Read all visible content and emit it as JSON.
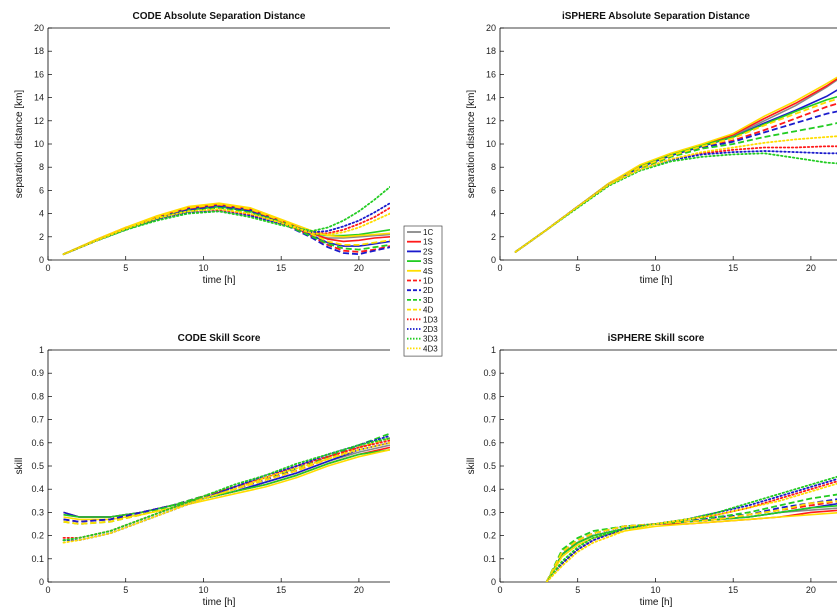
{
  "legend": {
    "entries": [
      {
        "name": "1C",
        "color": "#888888",
        "dash": "solid"
      },
      {
        "name": "1S",
        "color": "#ff1a1a",
        "dash": "solid"
      },
      {
        "name": "2S",
        "color": "#1a1acc",
        "dash": "solid"
      },
      {
        "name": "3S",
        "color": "#22cc22",
        "dash": "solid"
      },
      {
        "name": "4S",
        "color": "#ffdd00",
        "dash": "solid"
      },
      {
        "name": "1D",
        "color": "#ff1a1a",
        "dash": "dashed"
      },
      {
        "name": "2D",
        "color": "#1a1acc",
        "dash": "dashed"
      },
      {
        "name": "3D",
        "color": "#22cc22",
        "dash": "dashed"
      },
      {
        "name": "4D",
        "color": "#ffdd00",
        "dash": "dashed"
      },
      {
        "name": "1D3",
        "color": "#ff1a1a",
        "dash": "dotted"
      },
      {
        "name": "2D3",
        "color": "#1a1acc",
        "dash": "dotted"
      },
      {
        "name": "3D3",
        "color": "#22cc22",
        "dash": "dotted"
      },
      {
        "name": "4D3",
        "color": "#ffdd00",
        "dash": "dotted"
      }
    ]
  },
  "chart_data": [
    {
      "type": "line",
      "title": "CODE Absolute Separation Distance",
      "xlabel": "time [h]",
      "ylabel": "separation distance [km]",
      "xlim": [
        0,
        22
      ],
      "ylim": [
        0,
        20
      ],
      "xticks": [
        0,
        5,
        10,
        15,
        20
      ],
      "yticks": [
        0,
        2,
        4,
        6,
        8,
        10,
        12,
        14,
        16,
        18,
        20
      ],
      "x": [
        1,
        3,
        5,
        7,
        9,
        11,
        13,
        15,
        17,
        18,
        19,
        20,
        21,
        22
      ],
      "series": [
        {
          "name": "1C",
          "values": [
            0.5,
            1.6,
            2.7,
            3.6,
            4.3,
            4.6,
            4.2,
            3.3,
            2.2,
            1.9,
            1.9,
            2.0,
            2.1,
            2.2
          ]
        },
        {
          "name": "1S",
          "values": [
            0.5,
            1.7,
            2.8,
            3.7,
            4.5,
            4.8,
            4.4,
            3.4,
            2.3,
            1.8,
            1.6,
            1.7,
            1.9,
            2.0
          ]
        },
        {
          "name": "2S",
          "values": [
            0.5,
            1.6,
            2.7,
            3.6,
            4.4,
            4.7,
            4.3,
            3.3,
            2.1,
            1.5,
            1.2,
            1.2,
            1.4,
            1.6
          ]
        },
        {
          "name": "3S",
          "values": [
            0.5,
            1.6,
            2.7,
            3.6,
            4.3,
            4.6,
            4.2,
            3.3,
            2.3,
            2.1,
            2.1,
            2.2,
            2.4,
            2.6
          ]
        },
        {
          "name": "4S",
          "values": [
            0.5,
            1.7,
            2.8,
            3.8,
            4.6,
            4.9,
            4.5,
            3.5,
            2.5,
            2.1,
            2.0,
            2.1,
            2.2,
            2.3
          ]
        },
        {
          "name": "1D",
          "values": [
            0.5,
            1.6,
            2.7,
            3.6,
            4.4,
            4.7,
            4.3,
            3.3,
            2.0,
            1.3,
            0.8,
            0.7,
            0.9,
            1.2
          ]
        },
        {
          "name": "2D",
          "values": [
            0.5,
            1.6,
            2.7,
            3.6,
            4.3,
            4.6,
            4.2,
            3.2,
            1.9,
            1.1,
            0.6,
            0.5,
            0.8,
            1.1
          ]
        },
        {
          "name": "3D",
          "values": [
            0.5,
            1.6,
            2.6,
            3.5,
            4.2,
            4.5,
            4.1,
            3.2,
            2.0,
            1.4,
            1.0,
            0.9,
            1.1,
            1.3
          ]
        },
        {
          "name": "4D",
          "values": [
            0.5,
            1.7,
            2.8,
            3.7,
            4.5,
            4.8,
            4.4,
            3.4,
            2.2,
            1.6,
            1.3,
            1.3,
            1.5,
            1.7
          ]
        },
        {
          "name": "1D3",
          "values": [
            0.5,
            1.6,
            2.7,
            3.5,
            4.1,
            4.3,
            3.9,
            3.1,
            2.3,
            2.3,
            2.6,
            3.1,
            3.7,
            4.5
          ]
        },
        {
          "name": "2D3",
          "values": [
            0.5,
            1.6,
            2.6,
            3.5,
            4.1,
            4.2,
            3.8,
            3.1,
            2.4,
            2.5,
            2.9,
            3.4,
            4.1,
            4.9
          ]
        },
        {
          "name": "3D3",
          "values": [
            0.5,
            1.6,
            2.6,
            3.4,
            4.0,
            4.2,
            3.7,
            3.0,
            2.5,
            2.8,
            3.4,
            4.2,
            5.2,
            6.3
          ]
        },
        {
          "name": "4D3",
          "values": [
            0.5,
            1.6,
            2.7,
            3.6,
            4.2,
            4.4,
            4.0,
            3.2,
            2.3,
            2.2,
            2.4,
            2.8,
            3.4,
            4.0
          ]
        }
      ]
    },
    {
      "type": "line",
      "title": "iSPHERE Absolute Separation Distance",
      "xlabel": "time [h]",
      "ylabel": "separation distance [km]",
      "xlim": [
        0,
        22
      ],
      "ylim": [
        0,
        20
      ],
      "xticks": [
        0,
        5,
        10,
        15,
        20
      ],
      "yticks": [
        0,
        2,
        4,
        6,
        8,
        10,
        12,
        14,
        16,
        18,
        20
      ],
      "x": [
        1,
        3,
        5,
        7,
        9,
        11,
        13,
        15,
        17,
        19,
        21,
        22
      ],
      "series": [
        {
          "name": "1C",
          "values": [
            0.7,
            2.6,
            4.6,
            6.6,
            8.1,
            9.1,
            9.9,
            10.7,
            12.0,
            13.3,
            14.9,
            15.8
          ]
        },
        {
          "name": "1S",
          "values": [
            0.7,
            2.6,
            4.6,
            6.6,
            8.1,
            9.1,
            9.9,
            10.8,
            12.2,
            13.5,
            15.0,
            15.9
          ]
        },
        {
          "name": "2S",
          "values": [
            0.7,
            2.6,
            4.6,
            6.5,
            8.0,
            9.0,
            9.8,
            10.6,
            11.8,
            12.9,
            14.1,
            14.9
          ]
        },
        {
          "name": "3S",
          "values": [
            0.7,
            2.6,
            4.6,
            6.6,
            8.1,
            9.1,
            9.9,
            10.6,
            11.7,
            12.8,
            13.8,
            14.2
          ]
        },
        {
          "name": "4S",
          "values": [
            0.7,
            2.6,
            4.6,
            6.6,
            8.2,
            9.2,
            10.0,
            10.9,
            12.4,
            13.7,
            15.2,
            16.0
          ]
        },
        {
          "name": "1D",
          "values": [
            0.7,
            2.6,
            4.6,
            6.5,
            8.0,
            9.0,
            9.7,
            10.3,
            11.2,
            12.2,
            13.2,
            13.6
          ]
        },
        {
          "name": "2D",
          "values": [
            0.7,
            2.6,
            4.6,
            6.5,
            8.0,
            9.0,
            9.7,
            10.2,
            11.0,
            11.8,
            12.6,
            12.9
          ]
        },
        {
          "name": "3D",
          "values": [
            0.7,
            2.6,
            4.6,
            6.5,
            7.9,
            8.9,
            9.6,
            10.0,
            10.6,
            11.1,
            11.6,
            11.9
          ]
        },
        {
          "name": "4D",
          "values": [
            0.7,
            2.6,
            4.6,
            6.5,
            8.0,
            9.0,
            9.8,
            10.5,
            11.6,
            12.6,
            13.6,
            14.0
          ]
        },
        {
          "name": "1D3",
          "values": [
            0.7,
            2.6,
            4.6,
            6.5,
            7.8,
            8.7,
            9.2,
            9.5,
            9.7,
            9.7,
            9.8,
            9.8
          ]
        },
        {
          "name": "2D3",
          "values": [
            0.7,
            2.6,
            4.6,
            6.5,
            7.8,
            8.6,
            9.1,
            9.3,
            9.4,
            9.3,
            9.2,
            9.2
          ]
        },
        {
          "name": "3D3",
          "values": [
            0.7,
            2.6,
            4.5,
            6.4,
            7.7,
            8.5,
            8.9,
            9.1,
            9.2,
            8.8,
            8.4,
            8.3
          ]
        },
        {
          "name": "4D3",
          "values": [
            0.7,
            2.6,
            4.6,
            6.5,
            7.8,
            8.7,
            9.3,
            9.7,
            10.1,
            10.4,
            10.6,
            10.7
          ]
        }
      ]
    },
    {
      "type": "line",
      "title": "CODE Skill Score",
      "xlabel": "time [h]",
      "ylabel": "skill",
      "xlim": [
        0,
        22
      ],
      "ylim": [
        0,
        1
      ],
      "xticks": [
        0,
        5,
        10,
        15,
        20
      ],
      "yticks": [
        0,
        0.1,
        0.2,
        0.3,
        0.4,
        0.5,
        0.6,
        0.7,
        0.8,
        0.9,
        1
      ],
      "x": [
        1,
        2,
        4,
        6,
        8,
        10,
        12,
        14,
        16,
        18,
        20,
        22
      ],
      "series": [
        {
          "name": "1C",
          "values": [
            0.29,
            0.28,
            0.28,
            0.3,
            0.33,
            0.36,
            0.39,
            0.43,
            0.47,
            0.52,
            0.56,
            0.59
          ]
        },
        {
          "name": "1S",
          "values": [
            0.3,
            0.28,
            0.28,
            0.3,
            0.33,
            0.36,
            0.39,
            0.42,
            0.46,
            0.51,
            0.55,
            0.58
          ]
        },
        {
          "name": "2S",
          "values": [
            0.3,
            0.28,
            0.28,
            0.3,
            0.33,
            0.36,
            0.39,
            0.43,
            0.47,
            0.52,
            0.57,
            0.6
          ]
        },
        {
          "name": "3S",
          "values": [
            0.29,
            0.28,
            0.28,
            0.3,
            0.33,
            0.36,
            0.39,
            0.42,
            0.46,
            0.51,
            0.55,
            0.57
          ]
        },
        {
          "name": "4S",
          "values": [
            0.28,
            0.27,
            0.27,
            0.29,
            0.32,
            0.35,
            0.38,
            0.41,
            0.45,
            0.5,
            0.54,
            0.57
          ]
        },
        {
          "name": "1D",
          "values": [
            0.27,
            0.26,
            0.27,
            0.3,
            0.33,
            0.37,
            0.4,
            0.44,
            0.48,
            0.53,
            0.58,
            0.62
          ]
        },
        {
          "name": "2D",
          "values": [
            0.27,
            0.26,
            0.27,
            0.3,
            0.33,
            0.37,
            0.4,
            0.44,
            0.49,
            0.54,
            0.58,
            0.62
          ]
        },
        {
          "name": "3D",
          "values": [
            0.26,
            0.25,
            0.26,
            0.29,
            0.33,
            0.37,
            0.41,
            0.45,
            0.49,
            0.54,
            0.59,
            0.64
          ]
        },
        {
          "name": "4D",
          "values": [
            0.26,
            0.25,
            0.26,
            0.29,
            0.32,
            0.36,
            0.4,
            0.44,
            0.48,
            0.53,
            0.58,
            0.62
          ]
        },
        {
          "name": "1D3",
          "values": [
            0.19,
            0.19,
            0.22,
            0.27,
            0.32,
            0.37,
            0.41,
            0.45,
            0.5,
            0.54,
            0.58,
            0.61
          ]
        },
        {
          "name": "2D3",
          "values": [
            0.18,
            0.18,
            0.21,
            0.26,
            0.31,
            0.36,
            0.41,
            0.46,
            0.5,
            0.55,
            0.59,
            0.63
          ]
        },
        {
          "name": "3D3",
          "values": [
            0.18,
            0.19,
            0.22,
            0.27,
            0.32,
            0.37,
            0.42,
            0.46,
            0.51,
            0.55,
            0.59,
            0.62
          ]
        },
        {
          "name": "4D3",
          "values": [
            0.17,
            0.18,
            0.21,
            0.26,
            0.31,
            0.36,
            0.4,
            0.45,
            0.49,
            0.53,
            0.57,
            0.6
          ]
        }
      ]
    },
    {
      "type": "line",
      "title": "iSPHERE Skill score",
      "xlabel": "time [h]",
      "ylabel": "skill",
      "xlim": [
        0,
        22
      ],
      "ylim": [
        0,
        1
      ],
      "xticks": [
        0,
        5,
        10,
        15,
        20
      ],
      "yticks": [
        0,
        0.1,
        0.2,
        0.3,
        0.4,
        0.5,
        0.6,
        0.7,
        0.8,
        0.9,
        1
      ],
      "x": [
        3,
        4,
        5,
        6,
        8,
        10,
        12,
        14,
        16,
        18,
        20,
        22
      ],
      "series": [
        {
          "name": "1C",
          "values": [
            0.0,
            0.12,
            0.17,
            0.2,
            0.23,
            0.25,
            0.26,
            0.27,
            0.28,
            0.3,
            0.31,
            0.32
          ]
        },
        {
          "name": "1S",
          "values": [
            0.0,
            0.12,
            0.17,
            0.2,
            0.23,
            0.25,
            0.25,
            0.26,
            0.27,
            0.28,
            0.3,
            0.31
          ]
        },
        {
          "name": "2S",
          "values": [
            0.0,
            0.12,
            0.17,
            0.2,
            0.23,
            0.25,
            0.26,
            0.27,
            0.28,
            0.3,
            0.32,
            0.34
          ]
        },
        {
          "name": "3S",
          "values": [
            0.0,
            0.12,
            0.17,
            0.2,
            0.23,
            0.25,
            0.26,
            0.27,
            0.28,
            0.3,
            0.32,
            0.33
          ]
        },
        {
          "name": "4S",
          "values": [
            0.0,
            0.11,
            0.16,
            0.19,
            0.22,
            0.24,
            0.25,
            0.26,
            0.27,
            0.28,
            0.29,
            0.3
          ]
        },
        {
          "name": "1D",
          "values": [
            0.0,
            0.13,
            0.18,
            0.21,
            0.24,
            0.25,
            0.26,
            0.27,
            0.29,
            0.31,
            0.33,
            0.35
          ]
        },
        {
          "name": "2D",
          "values": [
            0.0,
            0.13,
            0.18,
            0.21,
            0.24,
            0.25,
            0.26,
            0.28,
            0.29,
            0.32,
            0.34,
            0.36
          ]
        },
        {
          "name": "3D",
          "values": [
            0.0,
            0.14,
            0.19,
            0.22,
            0.24,
            0.25,
            0.27,
            0.28,
            0.3,
            0.33,
            0.36,
            0.38
          ]
        },
        {
          "name": "4D",
          "values": [
            0.0,
            0.13,
            0.18,
            0.21,
            0.24,
            0.25,
            0.26,
            0.27,
            0.29,
            0.31,
            0.34,
            0.35
          ]
        },
        {
          "name": "1D3",
          "values": [
            0.0,
            0.08,
            0.14,
            0.18,
            0.23,
            0.25,
            0.27,
            0.29,
            0.32,
            0.36,
            0.4,
            0.44
          ]
        },
        {
          "name": "2D3",
          "values": [
            0.0,
            0.08,
            0.14,
            0.18,
            0.23,
            0.25,
            0.27,
            0.3,
            0.33,
            0.37,
            0.41,
            0.45
          ]
        },
        {
          "name": "3D3",
          "values": [
            0.0,
            0.09,
            0.15,
            0.19,
            0.23,
            0.25,
            0.27,
            0.3,
            0.34,
            0.38,
            0.42,
            0.46
          ]
        },
        {
          "name": "4D3",
          "values": [
            0.0,
            0.07,
            0.13,
            0.17,
            0.22,
            0.25,
            0.27,
            0.29,
            0.32,
            0.35,
            0.39,
            0.43
          ]
        }
      ]
    }
  ]
}
